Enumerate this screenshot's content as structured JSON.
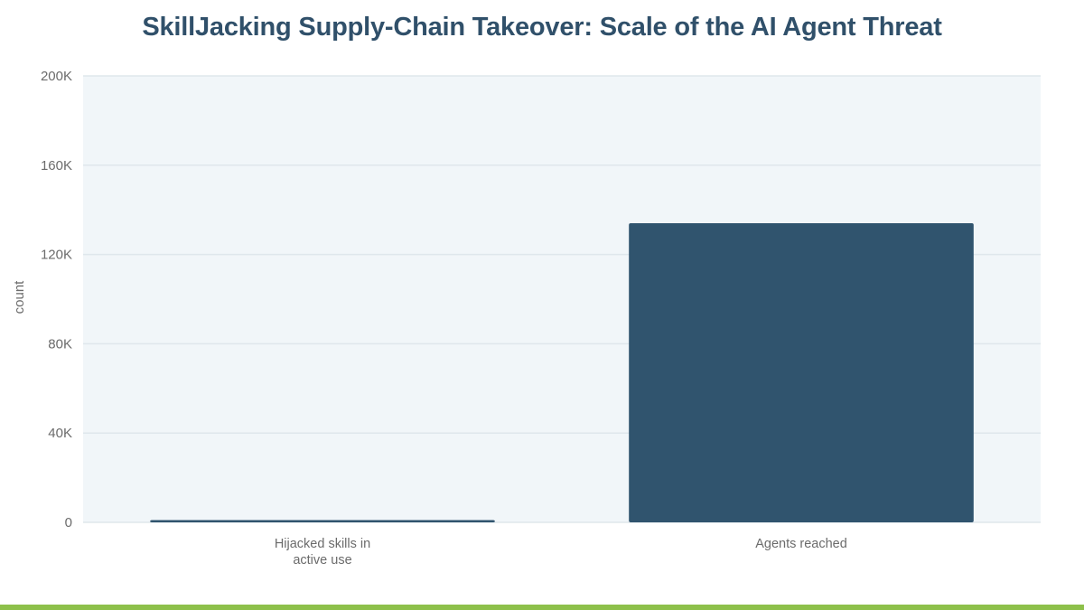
{
  "colors": {
    "bar": "#30546e",
    "plot_background": "#f1f6f9",
    "gridline": "#dfe7ec",
    "accent_bar": "#8dc04a"
  },
  "chart_data": {
    "type": "bar",
    "title": "SkillJacking Supply-Chain Takeover: Scale of the AI Agent Threat",
    "xlabel": "",
    "ylabel": "count",
    "categories": [
      [
        "Hijacked skills in",
        "active use"
      ],
      [
        "Agents reached"
      ]
    ],
    "values": [
      1000,
      134000
    ],
    "ylim": [
      0,
      200000
    ],
    "yticks": [
      0,
      40000,
      80000,
      120000,
      160000,
      200000
    ],
    "ytick_labels": [
      "0",
      "40K",
      "80K",
      "120K",
      "160K",
      "200K"
    ],
    "grid": true,
    "legend": "none"
  }
}
